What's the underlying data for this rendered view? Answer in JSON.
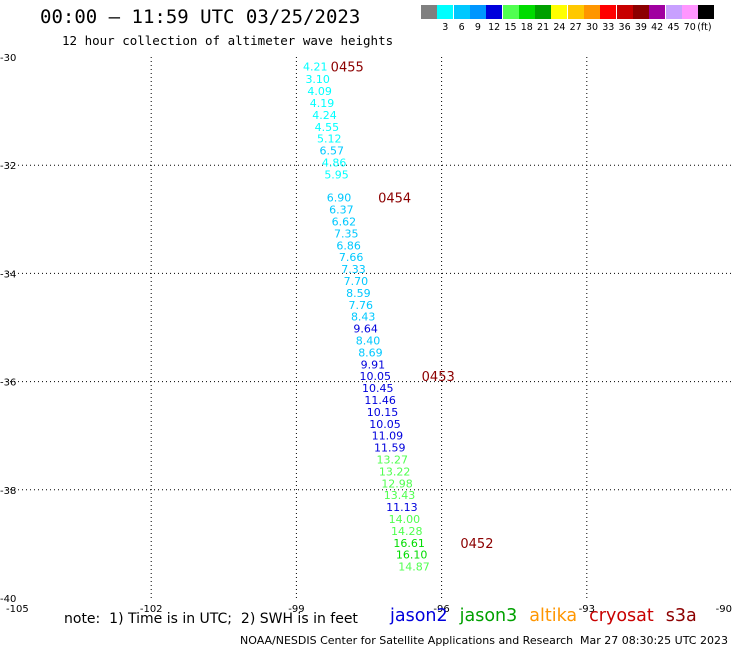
{
  "header": {
    "title": "00:00 – 11:59 UTC 03/25/2023",
    "subtitle": "12 hour collection of altimeter wave heights"
  },
  "colorbar": {
    "unit": "(ft)",
    "boxes": [
      {
        "color": "#808080",
        "label": ""
      },
      {
        "color": "#00ffff",
        "label": "3"
      },
      {
        "color": "#00c8ff",
        "label": "6"
      },
      {
        "color": "#0096ff",
        "label": "9"
      },
      {
        "color": "#0000dc",
        "label": "12"
      },
      {
        "color": "#50ff50",
        "label": "15"
      },
      {
        "color": "#00dc00",
        "label": "18"
      },
      {
        "color": "#00a000",
        "label": "21"
      },
      {
        "color": "#ffff00",
        "label": "24"
      },
      {
        "color": "#ffc800",
        "label": "27"
      },
      {
        "color": "#ff9600",
        "label": "30"
      },
      {
        "color": "#ff0000",
        "label": "33"
      },
      {
        "color": "#c80000",
        "label": "36"
      },
      {
        "color": "#8c0000",
        "label": "39"
      },
      {
        "color": "#a000a0",
        "label": "42"
      },
      {
        "color": "#c8a0ff",
        "label": "45"
      },
      {
        "color": "#ff96ff",
        "label": "70"
      },
      {
        "color": "#000000",
        "label": ""
      }
    ]
  },
  "chart_data": {
    "type": "scatter",
    "title": "00:00 – 11:59 UTC 03/25/2023",
    "subtitle": "12 hour collection of altimeter wave heights",
    "xlim": [
      -105,
      -90
    ],
    "ylim": [
      -40,
      -30
    ],
    "x_ticks": [
      -105,
      -102,
      -99,
      -96,
      -93,
      -90
    ],
    "y_ticks": [
      -30,
      -32,
      -34,
      -36,
      -38,
      -40
    ],
    "grid": true,
    "points": [
      {
        "lon": -98.61,
        "lat": -30.18,
        "v": "4.21",
        "c": "#00ffff"
      },
      {
        "lon": -98.56,
        "lat": -30.41,
        "v": "3.10",
        "c": "#00ffff"
      },
      {
        "lon": -98.52,
        "lat": -30.63,
        "v": "4.09",
        "c": "#00ffff"
      },
      {
        "lon": -98.47,
        "lat": -30.85,
        "v": "4.19",
        "c": "#00ffff"
      },
      {
        "lon": -98.42,
        "lat": -31.07,
        "v": "4.24",
        "c": "#00ffff"
      },
      {
        "lon": -98.37,
        "lat": -31.29,
        "v": "4.55",
        "c": "#00ffff"
      },
      {
        "lon": -98.32,
        "lat": -31.51,
        "v": "5.12",
        "c": "#00ffff"
      },
      {
        "lon": -98.27,
        "lat": -31.73,
        "v": "6.57",
        "c": "#00c8ff"
      },
      {
        "lon": -98.22,
        "lat": -31.95,
        "v": "4.86",
        "c": "#00ffff"
      },
      {
        "lon": -98.17,
        "lat": -32.17,
        "v": "5.95",
        "c": "#00ffff"
      },
      {
        "lon": -98.12,
        "lat": -32.6,
        "v": "6.90",
        "c": "#00c8ff"
      },
      {
        "lon": -98.07,
        "lat": -32.82,
        "v": "6.37",
        "c": "#00c8ff"
      },
      {
        "lon": -98.02,
        "lat": -33.04,
        "v": "6.62",
        "c": "#00c8ff"
      },
      {
        "lon": -97.97,
        "lat": -33.26,
        "v": "7.35",
        "c": "#00c8ff"
      },
      {
        "lon": -97.92,
        "lat": -33.48,
        "v": "6.86",
        "c": "#00c8ff"
      },
      {
        "lon": -97.87,
        "lat": -33.7,
        "v": "7.66",
        "c": "#00c8ff"
      },
      {
        "lon": -97.82,
        "lat": -33.92,
        "v": "7.33",
        "c": "#00c8ff"
      },
      {
        "lon": -97.77,
        "lat": -34.14,
        "v": "7.70",
        "c": "#00c8ff"
      },
      {
        "lon": -97.72,
        "lat": -34.36,
        "v": "8.59",
        "c": "#00c8ff"
      },
      {
        "lon": -97.67,
        "lat": -34.58,
        "v": "7.76",
        "c": "#00c8ff"
      },
      {
        "lon": -97.62,
        "lat": -34.8,
        "v": "8.43",
        "c": "#00c8ff"
      },
      {
        "lon": -97.57,
        "lat": -35.02,
        "v": "9.64",
        "c": "#0000dc"
      },
      {
        "lon": -97.52,
        "lat": -35.24,
        "v": "8.40",
        "c": "#00c8ff"
      },
      {
        "lon": -97.47,
        "lat": -35.46,
        "v": "8.69",
        "c": "#00c8ff"
      },
      {
        "lon": -97.42,
        "lat": -35.68,
        "v": "9.91",
        "c": "#0000dc"
      },
      {
        "lon": -97.37,
        "lat": -35.9,
        "v": "10.05",
        "c": "#0000dc"
      },
      {
        "lon": -97.32,
        "lat": -36.12,
        "v": "10.45",
        "c": "#0000dc"
      },
      {
        "lon": -97.27,
        "lat": -36.34,
        "v": "11.46",
        "c": "#0000dc"
      },
      {
        "lon": -97.22,
        "lat": -36.56,
        "v": "10.15",
        "c": "#0000dc"
      },
      {
        "lon": -97.17,
        "lat": -36.78,
        "v": "10.05",
        "c": "#0000dc"
      },
      {
        "lon": -97.12,
        "lat": -37.0,
        "v": "11.09",
        "c": "#0000dc"
      },
      {
        "lon": -97.07,
        "lat": -37.22,
        "v": "11.59",
        "c": "#0000dc"
      },
      {
        "lon": -97.02,
        "lat": -37.44,
        "v": "13.27",
        "c": "#50ff50"
      },
      {
        "lon": -96.97,
        "lat": -37.66,
        "v": "13.22",
        "c": "#50ff50"
      },
      {
        "lon": -96.92,
        "lat": -37.88,
        "v": "12.98",
        "c": "#50ff50"
      },
      {
        "lon": -96.87,
        "lat": -38.1,
        "v": "13.43",
        "c": "#50ff50"
      },
      {
        "lon": -96.82,
        "lat": -38.32,
        "v": "11.13",
        "c": "#0000dc"
      },
      {
        "lon": -96.77,
        "lat": -38.54,
        "v": "14.00",
        "c": "#50ff50"
      },
      {
        "lon": -96.72,
        "lat": -38.76,
        "v": "14.28",
        "c": "#50ff50"
      },
      {
        "lon": -96.67,
        "lat": -38.98,
        "v": "16.61",
        "c": "#00dc00"
      },
      {
        "lon": -96.62,
        "lat": -39.2,
        "v": "16.10",
        "c": "#00dc00"
      },
      {
        "lon": -96.57,
        "lat": -39.42,
        "v": "14.87",
        "c": "#50ff50"
      }
    ],
    "time_labels": [
      {
        "lon": -97.95,
        "lat": -30.18,
        "text": "0455"
      },
      {
        "lon": -96.97,
        "lat": -32.6,
        "text": "0454"
      },
      {
        "lon": -96.07,
        "lat": -35.9,
        "text": "0453"
      },
      {
        "lon": -95.27,
        "lat": -38.98,
        "text": "0452"
      }
    ],
    "time_label_color": "#8c0000"
  },
  "footer": {
    "note": "note:  1) Time is in UTC;  2) SWH is in feet",
    "legend": [
      {
        "name": "jason2",
        "color": "#0000dc"
      },
      {
        "name": "jason3",
        "color": "#00a000"
      },
      {
        "name": "altika",
        "color": "#ff9600"
      },
      {
        "name": "cryosat",
        "color": "#c80000"
      },
      {
        "name": "s3a",
        "color": "#8c0000"
      }
    ],
    "credit": "NOAA/NESDIS Center for Satellite Applications and Research",
    "timestamp": "Mar 27 08:30:25 UTC 2023"
  }
}
